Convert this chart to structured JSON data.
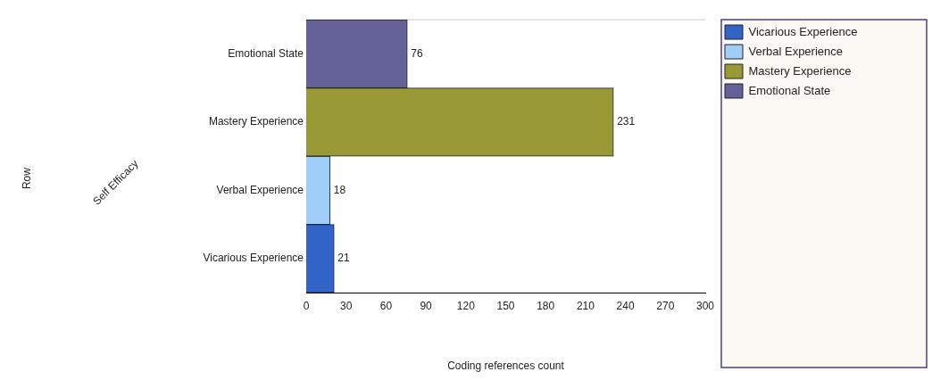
{
  "chart_data": {
    "type": "bar",
    "orientation": "horizontal",
    "xlabel": "Coding references count",
    "annotations": [
      "Row",
      "Self Efficacy"
    ],
    "categories": [
      "Emotional State",
      "Mastery Experience",
      "Verbal Experience",
      "Vicarious Experience"
    ],
    "series": [
      {
        "name": "Emotional State",
        "color": "#636197",
        "values": [
          76,
          null,
          null,
          null
        ]
      },
      {
        "name": "Mastery Experience",
        "color": "#999a35",
        "values": [
          null,
          231,
          null,
          null
        ]
      },
      {
        "name": "Verbal Experience",
        "color": "#9fcff8",
        "values": [
          null,
          null,
          18,
          null
        ]
      },
      {
        "name": "Vicarious Experience",
        "color": "#3264c8",
        "values": [
          null,
          null,
          null,
          21
        ]
      }
    ],
    "xlim": [
      0,
      300
    ],
    "xticks": [
      0,
      30,
      60,
      90,
      120,
      150,
      180,
      210,
      240,
      270,
      300
    ],
    "grid": false,
    "legend": "right",
    "data_labels": true
  }
}
